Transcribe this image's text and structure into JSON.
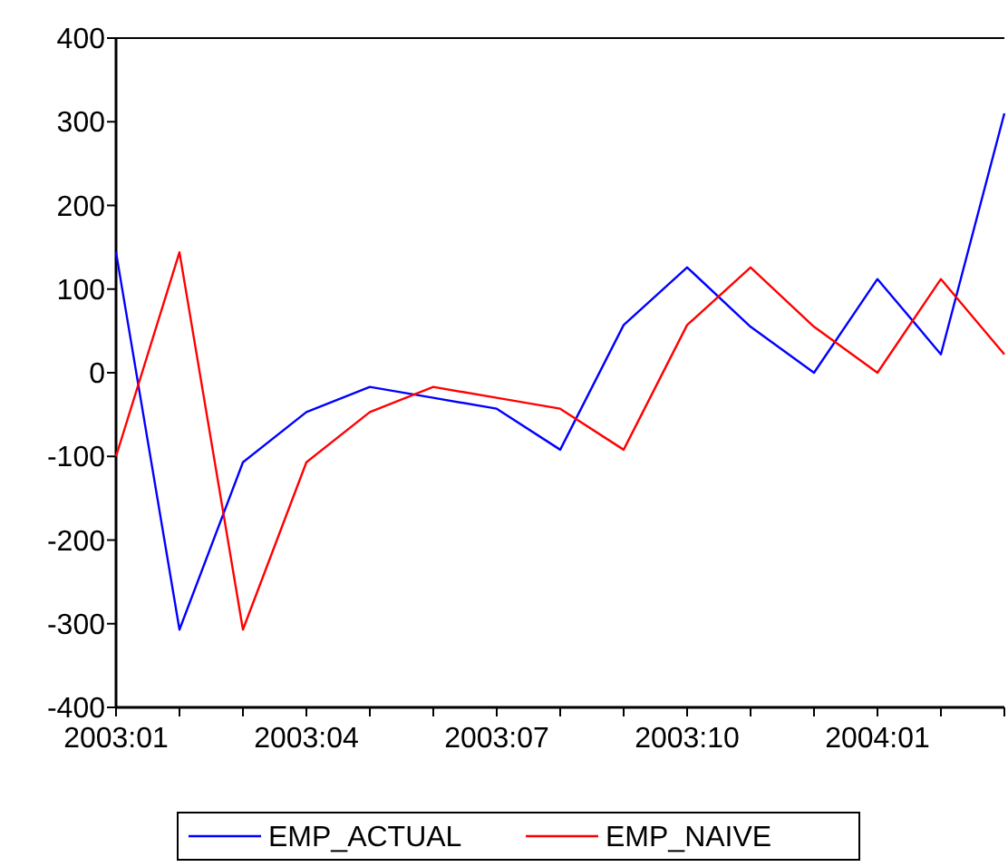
{
  "chart_data": {
    "type": "line",
    "categories": [
      "2003:01",
      null,
      null,
      "2003:04",
      null,
      null,
      "2003:07",
      null,
      null,
      "2003:10",
      null,
      null,
      "2004:01",
      null,
      null
    ],
    "series": [
      {
        "name": "EMP_ACTUAL",
        "color": "#0000ff",
        "values": [
          144,
          -307,
          -107,
          -47,
          -17,
          -30,
          -43,
          -92,
          57,
          126,
          55,
          0,
          112,
          22,
          310
        ]
      },
      {
        "name": "EMP_NAIVE",
        "color": "#ff0000",
        "values": [
          -100,
          144,
          -307,
          -107,
          -47,
          -17,
          -30,
          -43,
          -92,
          57,
          126,
          55,
          0,
          112,
          22
        ]
      }
    ],
    "ylim": [
      -400,
      400
    ],
    "yticks": [
      -400,
      -300,
      -200,
      -100,
      0,
      100,
      200,
      300,
      400
    ],
    "grid": false,
    "legend": "bottom",
    "marker": "none",
    "line_style": "solid"
  }
}
